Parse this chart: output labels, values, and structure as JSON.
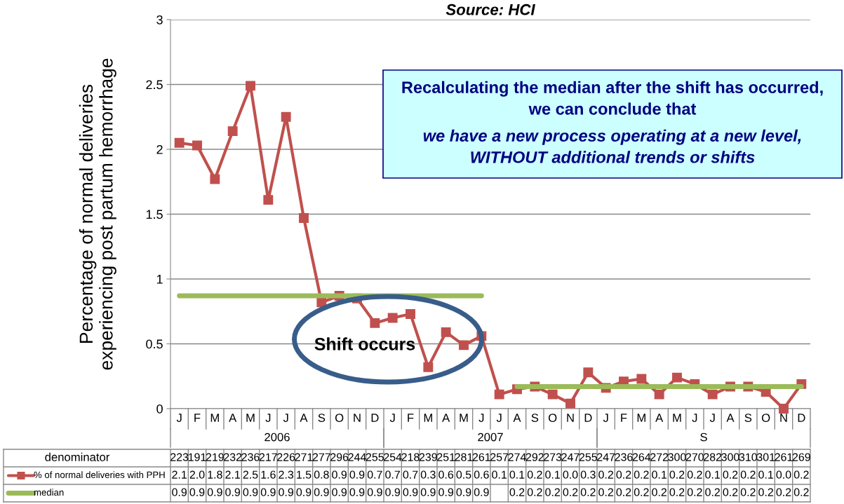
{
  "chart_data": {
    "type": "line",
    "title": "Source: HCI",
    "ylabel": "Percentage of normal deliveries\nexperiencing post partum hemorrhage",
    "categories": [
      "J",
      "F",
      "M",
      "A",
      "M",
      "J",
      "J",
      "A",
      "S",
      "O",
      "N",
      "D",
      "J",
      "F",
      "M",
      "A",
      "M",
      "J",
      "J",
      "A",
      "S",
      "O",
      "N",
      "D",
      "J",
      "F",
      "M",
      "A",
      "M",
      "J",
      "J",
      "A",
      "S",
      "O",
      "N",
      "D"
    ],
    "series": [
      {
        "name": "% of normal deliveries with PPH",
        "color": "#c0504d",
        "marker": "square",
        "values": [
          2.05,
          2.03,
          1.77,
          2.14,
          2.49,
          1.61,
          2.25,
          1.47,
          0.82,
          0.87,
          0.85,
          0.66,
          0.7,
          0.73,
          0.32,
          0.59,
          0.49,
          0.56,
          0.11,
          0.15,
          0.17,
          0.11,
          0.04,
          0.28,
          0.16,
          0.21,
          0.23,
          0.11,
          0.24,
          0.19,
          0.11,
          0.17,
          0.17,
          0.13,
          0,
          0.19
        ],
        "value_labels": [
          "2.1",
          "2.0",
          "1.8",
          "2.1",
          "2.5",
          "1.6",
          "2.3",
          "1.5",
          "0.8",
          "0.9",
          "0.9",
          "0.7",
          "0.7",
          "0.7",
          "0.3",
          "0.6",
          "0.5",
          "0.6",
          "0.1",
          "0.1",
          "0.2",
          "0.1",
          "0.0",
          "0.3",
          "0.2",
          "0.2",
          "0.2",
          "0.1",
          "0.2",
          "0.2",
          "0.1",
          "0.2",
          "0.2",
          "0.1",
          "0.0",
          "0.2"
        ]
      },
      {
        "name": "median",
        "color": "#9bbb59",
        "marker": "none",
        "values": [
          0.87,
          0.87,
          0.87,
          0.87,
          0.87,
          0.87,
          0.87,
          0.87,
          0.87,
          0.87,
          0.87,
          0.87,
          0.87,
          0.87,
          0.87,
          0.87,
          0.87,
          0.87,
          null,
          0.17,
          0.17,
          0.17,
          0.17,
          0.17,
          0.17,
          0.17,
          0.17,
          0.17,
          0.17,
          0.17,
          0.17,
          0.17,
          0.17,
          0.17,
          0.17,
          0.17
        ],
        "value_labels": [
          "0.9",
          "0.9",
          "0.9",
          "0.9",
          "0.9",
          "0.9",
          "0.9",
          "0.9",
          "0.9",
          "0.9",
          "0.9",
          "0.9",
          "0.9",
          "0.9",
          "0.9",
          "0.9",
          "0.9",
          "0.9",
          null,
          "0.2",
          "0.2",
          "0.2",
          "0.2",
          "0.2",
          "0.2",
          "0.2",
          "0.2",
          "0.2",
          "0.2",
          "0.2",
          "0.2",
          "0.2",
          "0.2",
          "0.2",
          "0.2",
          "0.2"
        ]
      }
    ],
    "ylim": [
      0,
      3
    ],
    "yticks": [
      0,
      0.5,
      1,
      1.5,
      2,
      2.5,
      3
    ],
    "grid": "y",
    "line_style": "solid",
    "legend": "bottom left",
    "annotations": [
      "Recalculating the median after the shift has occurred,\nwe can conclude that",
      "we have a new process operating at a new level,\nWITHOUT additional trends or shifts",
      "Shift occurs",
      "denominator",
      "223",
      "191",
      "219",
      "232",
      "236",
      "217",
      "226",
      "271",
      "277",
      "296",
      "244",
      "255",
      "254",
      "218",
      "239",
      "251",
      "281",
      "261",
      "257",
      "274",
      "292",
      "273",
      "247",
      "255",
      "247",
      "236",
      "264",
      "272",
      "300",
      "270",
      "282",
      "300",
      "310",
      "301",
      "261",
      "269",
      "2006",
      "2007",
      "S"
    ]
  }
}
